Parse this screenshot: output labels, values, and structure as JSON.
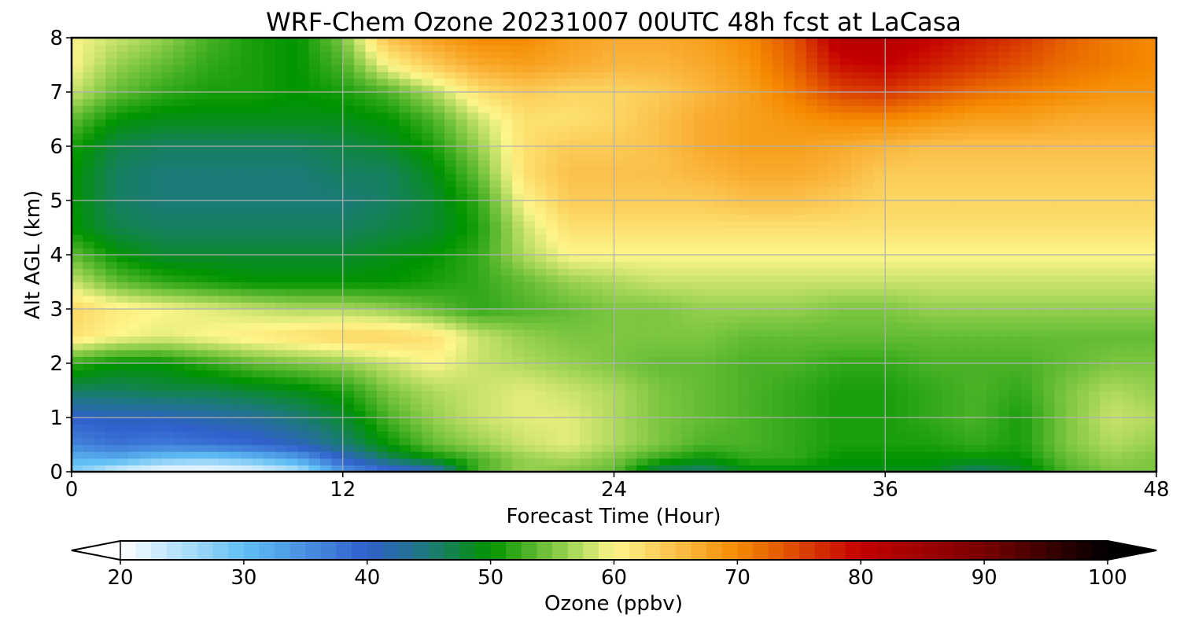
{
  "chart_data": {
    "type": "heatmap",
    "title": "WRF-Chem Ozone  20231007 00UTC 48h fcst at LaCasa",
    "xlabel": "Forecast Time (Hour)",
    "ylabel": "Alt AGL (km)",
    "xlim": [
      0,
      48
    ],
    "ylim": [
      0,
      8
    ],
    "x_ticks": [
      0,
      12,
      24,
      36,
      48
    ],
    "y_ticks": [
      0,
      1,
      2,
      3,
      4,
      5,
      6,
      7,
      8
    ],
    "grid": true,
    "colorbar": {
      "label": "Ozone  (ppbv)",
      "min": 20,
      "max": 100,
      "ticks": [
        20,
        30,
        40,
        50,
        60,
        70,
        80,
        90,
        100
      ],
      "extend": "both",
      "orientation": "horizontal",
      "color_stops": [
        {
          "v": 20,
          "c": "#ffffff"
        },
        {
          "v": 30,
          "c": "#60bff4"
        },
        {
          "v": 40,
          "c": "#3060cc"
        },
        {
          "v": 45,
          "c": "#1c7a78"
        },
        {
          "v": 50,
          "c": "#009400"
        },
        {
          "v": 55,
          "c": "#7cc640"
        },
        {
          "v": 60,
          "c": "#fdf68a"
        },
        {
          "v": 65,
          "c": "#fbc04a"
        },
        {
          "v": 70,
          "c": "#f58a00"
        },
        {
          "v": 80,
          "c": "#c40000"
        },
        {
          "v": 90,
          "c": "#780000"
        },
        {
          "v": 100,
          "c": "#000000"
        }
      ]
    },
    "x_hours": [
      0,
      2,
      4,
      6,
      8,
      10,
      12,
      14,
      16,
      18,
      20,
      22,
      24,
      26,
      28,
      30,
      32,
      34,
      36,
      38,
      40,
      42,
      44,
      46,
      48
    ],
    "y_km": [
      0,
      0.25,
      0.5,
      1,
      1.5,
      2,
      2.5,
      3,
      3.5,
      4,
      4.5,
      5,
      5.5,
      6,
      6.5,
      7,
      7.5,
      8
    ],
    "ozone_ppbv": [
      [
        28,
        22,
        20,
        20,
        21,
        24,
        34,
        38,
        40,
        53,
        56,
        55,
        54,
        46,
        45,
        49,
        49,
        49,
        49,
        49,
        45,
        48,
        53,
        55,
        55
      ],
      [
        31,
        32,
        29,
        28,
        30,
        33,
        40,
        46,
        50,
        53,
        56,
        57,
        55,
        52,
        50,
        52,
        52,
        50,
        50,
        50,
        50,
        50,
        54,
        56,
        55
      ],
      [
        36,
        38,
        37,
        38,
        39,
        41,
        45,
        50,
        54,
        56,
        58,
        59,
        57,
        55,
        53,
        53,
        52,
        51,
        51,
        51,
        52,
        51,
        55,
        57,
        56
      ],
      [
        40,
        41,
        41,
        42,
        43,
        45,
        48,
        53,
        56,
        58,
        59,
        59,
        57,
        55,
        54,
        53,
        52,
        51,
        51,
        52,
        53,
        51,
        55,
        58,
        57
      ],
      [
        46,
        46,
        47,
        47,
        48,
        49,
        51,
        55,
        57,
        58,
        59,
        58,
        57,
        55,
        54,
        53,
        52,
        51,
        51,
        52,
        53,
        52,
        55,
        57,
        56
      ],
      [
        52,
        50,
        50,
        52,
        54,
        55,
        56,
        58,
        60,
        58,
        57,
        56,
        55,
        54,
        54,
        53,
        53,
        52,
        52,
        53,
        53,
        53,
        54,
        55,
        55
      ],
      [
        62,
        60,
        59,
        60,
        61,
        62,
        63,
        63,
        62,
        58,
        56,
        55,
        55,
        55,
        55,
        54,
        54,
        54,
        54,
        54,
        54,
        54,
        54,
        54,
        54
      ],
      [
        63,
        61,
        60,
        59,
        58,
        57,
        57,
        56,
        54,
        52,
        53,
        54,
        55,
        55,
        56,
        56,
        56,
        55,
        55,
        56,
        56,
        56,
        56,
        56,
        56
      ],
      [
        58,
        54,
        52,
        51,
        50,
        50,
        50,
        50,
        51,
        52,
        54,
        56,
        57,
        58,
        58,
        58,
        58,
        58,
        58,
        58,
        58,
        58,
        58,
        58,
        58
      ],
      [
        54,
        50,
        48,
        48,
        48,
        48,
        48,
        49,
        50,
        52,
        57,
        60,
        60,
        60,
        60,
        60,
        60,
        60,
        60,
        60,
        60,
        60,
        60,
        60,
        60
      ],
      [
        50,
        47,
        46,
        46,
        46,
        46,
        46,
        47,
        48,
        51,
        58,
        62,
        62,
        62,
        62,
        62,
        62,
        62,
        62,
        62,
        62,
        62,
        62,
        62,
        62
      ],
      [
        50,
        46,
        45,
        45,
        45,
        45,
        45,
        46,
        48,
        52,
        60,
        64,
        64,
        64,
        64,
        65,
        65,
        64,
        63,
        63,
        63,
        63,
        63,
        63,
        63
      ],
      [
        50,
        46,
        45,
        45,
        45,
        45,
        46,
        46,
        49,
        54,
        62,
        65,
        65,
        65,
        66,
        67,
        67,
        66,
        64,
        64,
        64,
        64,
        64,
        64,
        64
      ],
      [
        51,
        47,
        46,
        46,
        46,
        46,
        47,
        48,
        51,
        56,
        62,
        64,
        64,
        65,
        67,
        68,
        68,
        67,
        66,
        65,
        65,
        65,
        65,
        65,
        65
      ],
      [
        54,
        50,
        49,
        49,
        49,
        49,
        49,
        50,
        53,
        58,
        62,
        62,
        63,
        65,
        67,
        68,
        69,
        70,
        70,
        69,
        68,
        68,
        67,
        67,
        67
      ],
      [
        58,
        54,
        52,
        51,
        51,
        50,
        51,
        53,
        57,
        62,
        64,
        63,
        63,
        64,
        66,
        68,
        71,
        75,
        76,
        74,
        72,
        71,
        70,
        69,
        69
      ],
      [
        60,
        56,
        54,
        52,
        51,
        50,
        53,
        60,
        64,
        67,
        68,
        67,
        66,
        66,
        67,
        69,
        73,
        79,
        80,
        78,
        76,
        74,
        72,
        71,
        70
      ],
      [
        60,
        58,
        56,
        53,
        51,
        50,
        55,
        65,
        68,
        70,
        70,
        68,
        67,
        67,
        68,
        70,
        74,
        82,
        82,
        80,
        78,
        76,
        73,
        71,
        70
      ]
    ]
  }
}
